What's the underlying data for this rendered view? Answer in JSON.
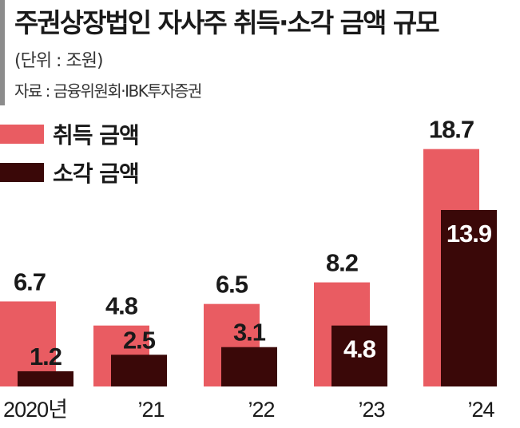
{
  "header": {
    "title": "주권상장법인 자사주 취득·소각 금액 규모",
    "unit": "(단위 : 조원)",
    "source": "자료 : 금융위원회·IBK투자증권"
  },
  "colors": {
    "acquisition": "#e95c62",
    "cancellation": "#3a0808",
    "text_dark": "#1a1a1a",
    "text_light": "#ffffff",
    "accent_bar": "#8c8c8c"
  },
  "chart_data": {
    "type": "bar",
    "categories": [
      "2020년",
      "’21",
      "’22",
      "’23",
      "’24"
    ],
    "series": [
      {
        "name": "취득 금액",
        "values": [
          6.7,
          4.8,
          6.5,
          8.2,
          18.7
        ]
      },
      {
        "name": "소각 금액",
        "values": [
          1.2,
          2.5,
          3.1,
          4.8,
          13.9
        ]
      }
    ],
    "ylim": [
      0,
      18.7
    ],
    "grid": false,
    "legend_position": "top-left",
    "data_labels": true
  }
}
